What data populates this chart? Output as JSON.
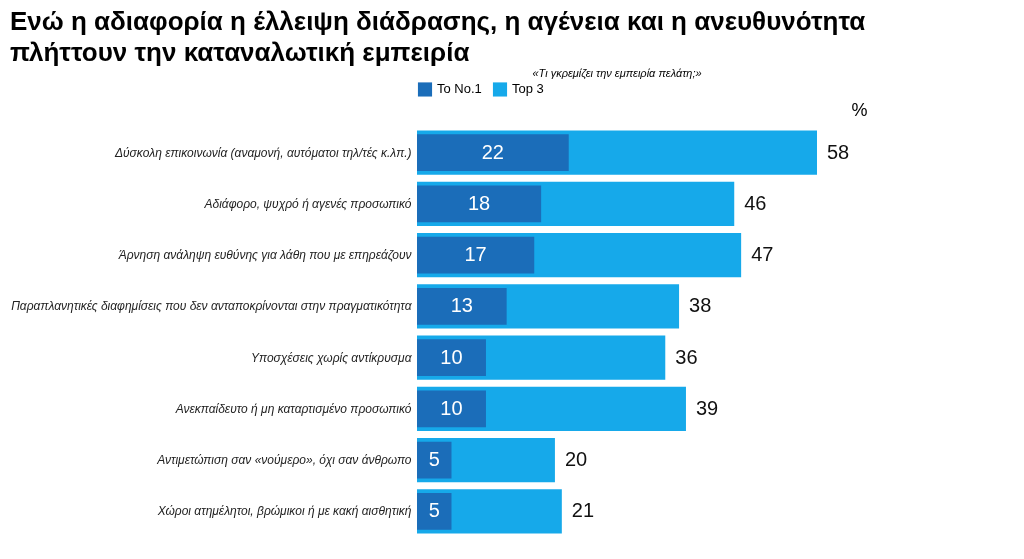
{
  "chart_data": {
    "type": "bar",
    "orientation": "horizontal",
    "title": "Ενώ η αδιαφορία η έλλειψη διάδρασης, η αγένεια και η ανευθυνότητα πλήττουν την καταναλωτική εμπειρία",
    "subtitle": "«Τι γκρεμίζει την εμπειρία πελάτη;»",
    "xlabel": "%",
    "categories": [
      "Δύσκολη επικοινωνία (αναμονή, αυτόματοι τηλ/τές κ.λπ.)",
      "Αδιάφορο, ψυχρό ή αγενές προσωπικό",
      "Άρνηση ανάληψη ευθύνης για λάθη που με επηρεάζουν",
      "Παραπλανητικές διαφημίσεις που δεν ανταποκρίνονται στην πραγματικότητα",
      "Υποσχέσεις χωρίς αντίκρυσμα",
      "Ανεκπαίδευτο ή μη καταρτισμένο προσωπικό",
      "Αντιμετώπιση σαν «νούμερο», όχι σαν άνθρωπο",
      "Χώροι ατημέλητοι, βρώμικοι ή με κακή αισθητική"
    ],
    "series": [
      {
        "name": "To No.1",
        "color": "#1b6db9",
        "values": [
          22,
          18,
          17,
          13,
          10,
          10,
          5,
          5
        ]
      },
      {
        "name": "Top 3",
        "color": "#16a9ea",
        "values": [
          58,
          46,
          47,
          38,
          36,
          39,
          20,
          21
        ]
      }
    ],
    "data_labels": true,
    "legend": "top",
    "grid": false
  }
}
